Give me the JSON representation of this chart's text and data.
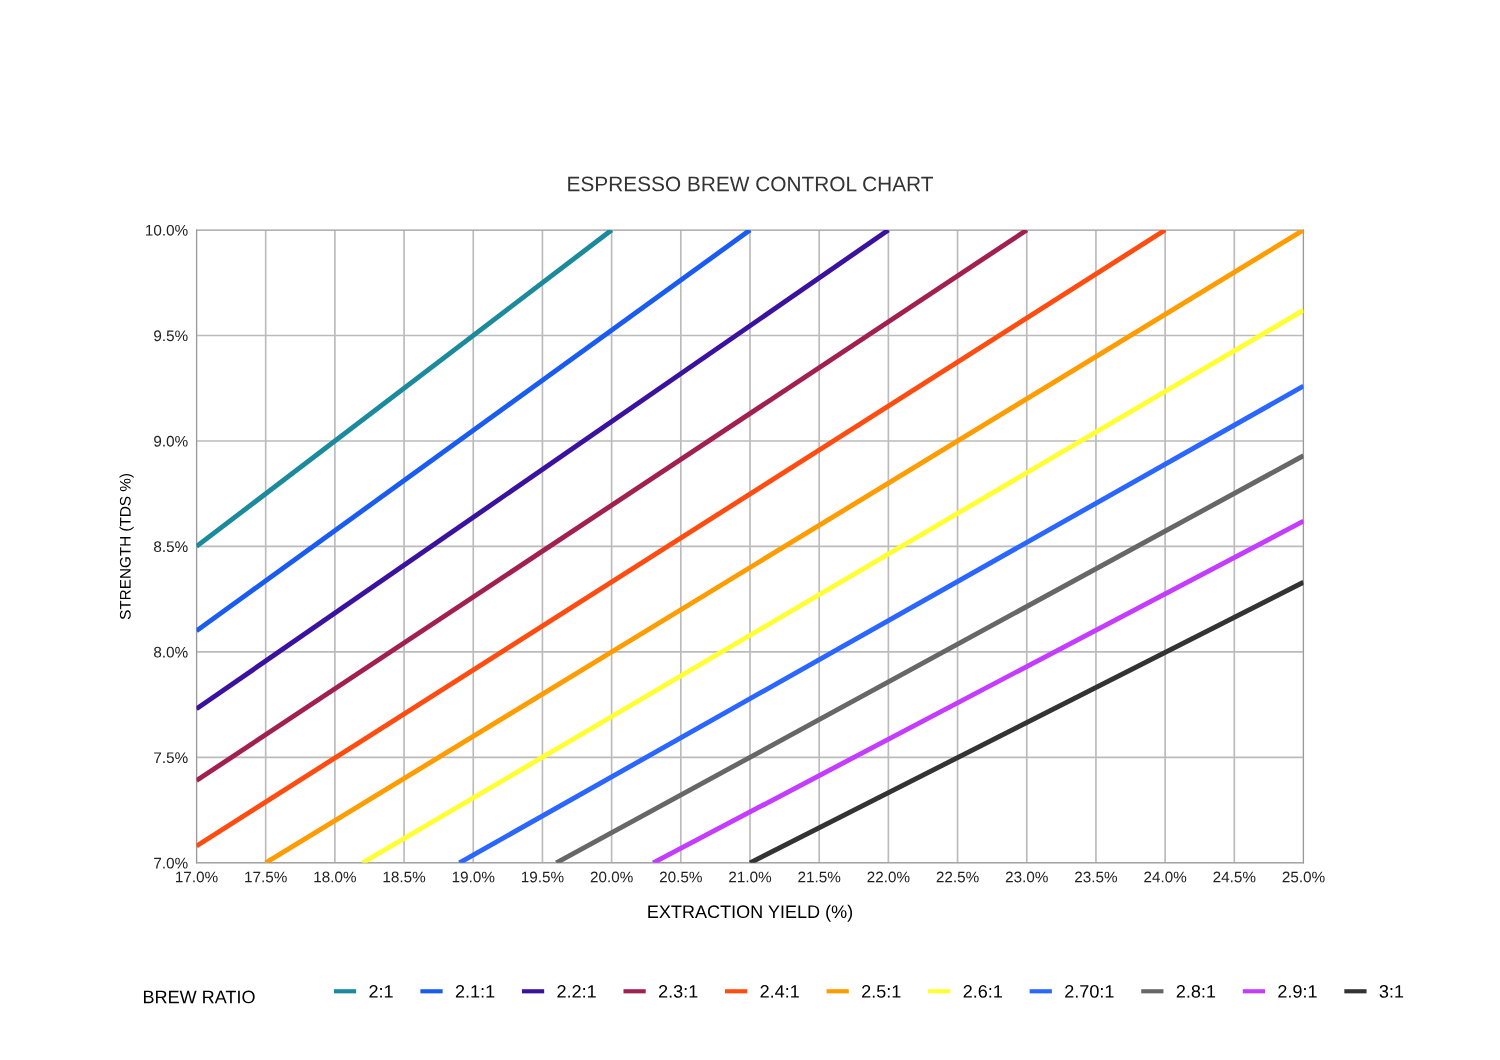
{
  "chart_data": {
    "type": "line",
    "title": "ESPRESSO BREW CONTROL CHART",
    "xlabel": "EXTRACTION YIELD (%)",
    "ylabel": "STRENGTH (TDS %)",
    "legend_title": "BREW RATIO",
    "series": [
      {
        "name": "2:1",
        "color": "#1b8a9c",
        "x": [
          17.0,
          20.0
        ],
        "values": [
          8.5,
          10.0
        ]
      },
      {
        "name": "2.1:1",
        "color": "#1a5cf0",
        "x": [
          17.0,
          21.0
        ],
        "values": [
          8.1,
          10.0
        ]
      },
      {
        "name": "2.2:1",
        "color": "#3a129e",
        "x": [
          17.0,
          22.0
        ],
        "values": [
          7.73,
          10.0
        ]
      },
      {
        "name": "2.3:1",
        "color": "#a2204f",
        "x": [
          17.0,
          23.0
        ],
        "values": [
          7.39,
          10.0
        ]
      },
      {
        "name": "2.4:1",
        "color": "#ff4d12",
        "x": [
          17.0,
          24.0
        ],
        "values": [
          7.08,
          10.0
        ]
      },
      {
        "name": "2.5:1",
        "color": "#ff9c00",
        "x": [
          17.5,
          25.0
        ],
        "values": [
          7.0,
          10.0
        ]
      },
      {
        "name": "2.6:1",
        "color": "#ffff33",
        "x": [
          18.2,
          25.0
        ],
        "values": [
          7.0,
          9.62
        ]
      },
      {
        "name": "2.70:1",
        "color": "#2a66ff",
        "x": [
          18.9,
          25.0
        ],
        "values": [
          7.0,
          9.26
        ]
      },
      {
        "name": "2.8:1",
        "color": "#676767",
        "x": [
          19.6,
          25.0
        ],
        "values": [
          7.0,
          8.93
        ]
      },
      {
        "name": "2.9:1",
        "color": "#c43cff",
        "x": [
          20.3,
          25.0
        ],
        "values": [
          7.0,
          8.62
        ]
      },
      {
        "name": "3:1",
        "color": "#333333",
        "x": [
          21.0,
          25.0
        ],
        "values": [
          7.0,
          8.33
        ]
      }
    ],
    "xlim": [
      17.0,
      25.0
    ],
    "xticks": [
      {
        "value": 17.0,
        "label": "17.0%"
      },
      {
        "value": 17.5,
        "label": "17.5%"
      },
      {
        "value": 18.0,
        "label": "18.0%"
      },
      {
        "value": 18.5,
        "label": "18.5%"
      },
      {
        "value": 19.0,
        "label": "19.0%"
      },
      {
        "value": 19.5,
        "label": "19.5%"
      },
      {
        "value": 20.0,
        "label": "20.0%"
      },
      {
        "value": 20.5,
        "label": "20.5%"
      },
      {
        "value": 21.0,
        "label": "21.0%"
      },
      {
        "value": 21.5,
        "label": "21.5%"
      },
      {
        "value": 22.0,
        "label": "22.0%"
      },
      {
        "value": 22.5,
        "label": "22.5%"
      },
      {
        "value": 23.0,
        "label": "23.0%"
      },
      {
        "value": 23.5,
        "label": "23.5%"
      },
      {
        "value": 24.0,
        "label": "24.0%"
      },
      {
        "value": 24.5,
        "label": "24.5%"
      },
      {
        "value": 25.0,
        "label": "25.0%"
      }
    ],
    "ylim": [
      7.0,
      10.0
    ],
    "yticks": [
      {
        "value": 7.0,
        "label": "7.0%"
      },
      {
        "value": 7.5,
        "label": "7.5%"
      },
      {
        "value": 8.0,
        "label": "8.0%"
      },
      {
        "value": 8.5,
        "label": "8.5%"
      },
      {
        "value": 9.0,
        "label": "9.0%"
      },
      {
        "value": 9.5,
        "label": "9.5%"
      },
      {
        "value": 10.0,
        "label": "10.0%"
      }
    ],
    "grid": true,
    "legend": "bottom",
    "marker": "none",
    "line_style": "solid"
  }
}
